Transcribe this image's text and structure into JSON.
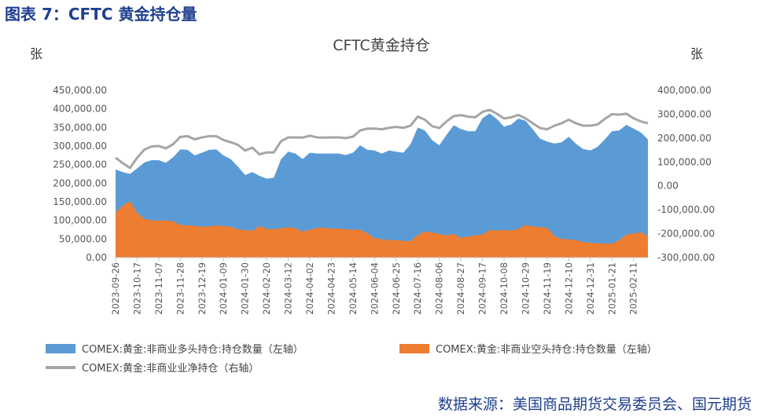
{
  "figure_title": "图表 7：CFTC 黄金持仓量",
  "source_note": "数据来源：美国商品期货交易委员会、国元期货",
  "colors": {
    "long": "#5b9bd5",
    "short": "#ed7d31",
    "net": "#a5a5a5",
    "header": "#1f3f8f"
  },
  "chart_data": {
    "type": "area",
    "title": "CFTC黄金持仓",
    "ylabel_left": "张",
    "ylabel_right": "张",
    "ylim_left": [
      0,
      450000
    ],
    "ylim_right": [
      -300000,
      400000
    ],
    "yticks_left": [
      "450,000.00",
      "400,000.00",
      "350,000.00",
      "300,000.00",
      "250,000.00",
      "200,000.00",
      "150,000.00",
      "100,000.00",
      "50,000.00",
      "0.00"
    ],
    "yticks_right": [
      "400,000.00",
      "300,000.00",
      "200,000.00",
      "100,000.00",
      "0.00",
      "-100,000.00",
      "-200,000.00",
      "-300,000.00"
    ],
    "x_tick_labels": [
      "2023-09-26",
      "2023-10-17",
      "2023-11-07",
      "2023-11-28",
      "2023-12-19",
      "2024-01-09",
      "2024-01-30",
      "2024-02-20",
      "2024-03-12",
      "2024-04-02",
      "2024-04-23",
      "2024-05-14",
      "2024-06-04",
      "2024-06-25",
      "2024-07-16",
      "2024-08-06",
      "2024-08-27",
      "2024-09-17",
      "2024-10-08",
      "2024-10-29",
      "2024-11-19",
      "2024-12-10",
      "2024-12-31",
      "2025-01-21",
      "2025-02-11"
    ],
    "legend_position": "bottom",
    "series": [
      {
        "name": "COMEX:黄金:非商业多头持仓:持仓数量（左轴）",
        "axis": "left",
        "type": "area",
        "values": [
          237000,
          230000,
          225000,
          240000,
          256000,
          262000,
          262000,
          255000,
          270000,
          291000,
          290000,
          275000,
          282000,
          290000,
          291000,
          275000,
          265000,
          245000,
          222000,
          230000,
          220000,
          212000,
          215000,
          265000,
          285000,
          280000,
          265000,
          282000,
          280000,
          280000,
          280000,
          280000,
          276000,
          282000,
          302000,
          290000,
          288000,
          280000,
          288000,
          285000,
          282000,
          305000,
          350000,
          342000,
          316000,
          302000,
          330000,
          356000,
          346000,
          340000,
          340000,
          375000,
          388000,
          373000,
          352000,
          358000,
          374000,
          368000,
          345000,
          320000,
          312000,
          307000,
          310000,
          325000,
          306000,
          292000,
          288000,
          298000,
          318000,
          340000,
          342000,
          357000,
          347000,
          337000,
          318000
        ]
      },
      {
        "name": "COMEX:黄金:非商业空头持仓:持仓数量（左轴）",
        "axis": "left",
        "type": "area",
        "values": [
          121000,
          140000,
          152000,
          120000,
          104000,
          100000,
          99000,
          100000,
          98000,
          88000,
          87000,
          85000,
          83000,
          84000,
          86000,
          85000,
          83000,
          76000,
          74000,
          72000,
          85000,
          77000,
          76000,
          79000,
          82000,
          79000,
          70000,
          75000,
          80000,
          80000,
          78000,
          78000,
          76000,
          75000,
          75000,
          66000,
          52000,
          49000,
          47000,
          47000,
          45000,
          44000,
          61000,
          70000,
          68000,
          63000,
          60000,
          64000,
          53000,
          57000,
          60000,
          62000,
          74000,
          73000,
          74000,
          73000,
          77000,
          88000,
          84000,
          82000,
          80000,
          58000,
          50000,
          49000,
          47000,
          42000,
          40000,
          38000,
          38000,
          37000,
          47000,
          62000,
          65000,
          68000,
          58000
        ]
      },
      {
        "name": "COMEX:黄金:非商业业净持仓（右轴）",
        "axis": "right",
        "type": "line",
        "values": [
          118000,
          95000,
          75000,
          118000,
          152000,
          165000,
          167000,
          157000,
          175000,
          205000,
          208000,
          195000,
          203000,
          208000,
          208000,
          192000,
          183000,
          172000,
          148000,
          160000,
          132000,
          140000,
          140000,
          187000,
          203000,
          203000,
          202000,
          210000,
          203000,
          202000,
          203000,
          203000,
          200000,
          206000,
          232000,
          240000,
          240000,
          237000,
          243000,
          247000,
          243000,
          252000,
          290000,
          277000,
          250000,
          242000,
          270000,
          292000,
          296000,
          290000,
          287000,
          310000,
          318000,
          302000,
          282000,
          287000,
          297000,
          282000,
          262000,
          242000,
          237000,
          252000,
          262000,
          277000,
          262000,
          252000,
          252000,
          257000,
          280000,
          300000,
          298000,
          302000,
          283000,
          270000,
          262000
        ]
      }
    ]
  }
}
